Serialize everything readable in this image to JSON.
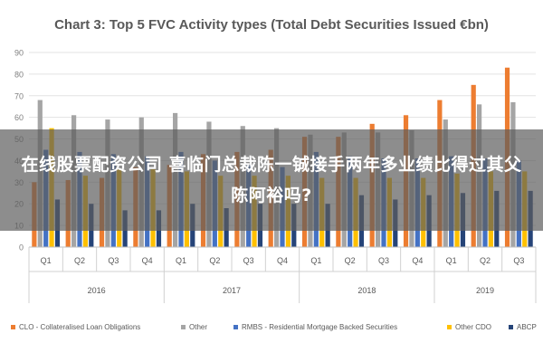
{
  "chart_data": {
    "type": "bar",
    "title": "Chart 3: Top 5 FVC Activity types (Total Debt Securities Issued €bn)",
    "xlabel": "",
    "ylabel": "",
    "ylim": [
      0,
      90
    ],
    "yticks": [
      0,
      10,
      20,
      30,
      40,
      50,
      60,
      70,
      80,
      90
    ],
    "grid": true,
    "legend_position": "bottom",
    "categories": [
      "Q1",
      "Q2",
      "Q3",
      "Q4",
      "Q1",
      "Q2",
      "Q3",
      "Q4",
      "Q1",
      "Q2",
      "Q3",
      "Q4",
      "Q1",
      "Q2",
      "Q3"
    ],
    "year_groups": [
      {
        "label": "2016",
        "count": 4
      },
      {
        "label": "2017",
        "count": 4
      },
      {
        "label": "2018",
        "count": 4
      },
      {
        "label": "2019",
        "count": 3
      }
    ],
    "series": [
      {
        "name": "CLO - Collateralised Loan Obligations",
        "color": "#ed7d31",
        "values": [
          30,
          31,
          32,
          37,
          38,
          43,
          44,
          45,
          51,
          51,
          57,
          61,
          68,
          75,
          83
        ]
      },
      {
        "name": "Other",
        "color": "#a5a5a5",
        "values": [
          68,
          61,
          59,
          60,
          62,
          58,
          56,
          55,
          52,
          53,
          53,
          54,
          59,
          66,
          67
        ]
      },
      {
        "name": "RMBS - Residential Mortgage Backed Securities",
        "color": "#4472c4",
        "values": [
          45,
          44,
          43,
          42,
          44,
          40,
          38,
          37,
          44,
          42,
          41,
          41,
          42,
          41,
          40
        ]
      },
      {
        "name": "Other CDO",
        "color": "#ffc000",
        "values": [
          55,
          33,
          36,
          36,
          35,
          33,
          33,
          33,
          32,
          32,
          32,
          32,
          34,
          35,
          35
        ]
      },
      {
        "name": "ABCP",
        "color": "#264478",
        "values": [
          22,
          20,
          17,
          17,
          20,
          18,
          20,
          20,
          20,
          24,
          22,
          24,
          25,
          26,
          26
        ]
      }
    ]
  },
  "overlay": {
    "text": "在线股票配资公司 喜临门总裁陈一铖接手两年多业绩比得过其父陈阿裕吗?"
  }
}
